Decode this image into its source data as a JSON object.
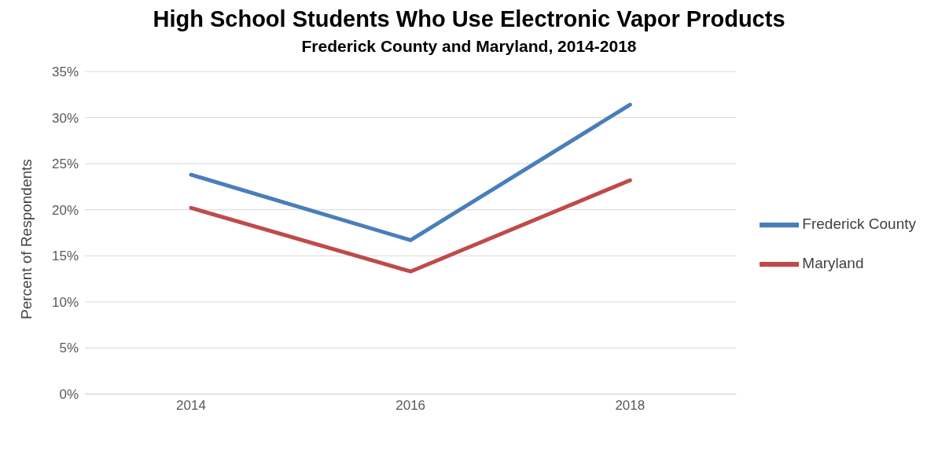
{
  "chart_data": {
    "type": "line",
    "title": "High School Students Who Use Electronic Vapor Products",
    "subtitle": "Frederick County and Maryland, 2014-2018",
    "ylabel": "Percent of Respondents",
    "categories": [
      "2014",
      "2016",
      "2018"
    ],
    "series": [
      {
        "name": "Frederick County",
        "color": "#4a7ebb",
        "values": [
          23.8,
          16.7,
          31.4
        ]
      },
      {
        "name": "Maryland",
        "color": "#be4b48",
        "values": [
          20.2,
          13.3,
          23.2
        ]
      }
    ],
    "ylim": [
      0,
      35
    ],
    "yticks": [
      {
        "value": 0,
        "label": "0%"
      },
      {
        "value": 5,
        "label": "5%"
      },
      {
        "value": 10,
        "label": "10%"
      },
      {
        "value": 15,
        "label": "15%"
      },
      {
        "value": 20,
        "label": "20%"
      },
      {
        "value": 25,
        "label": "25%"
      },
      {
        "value": 30,
        "label": "30%"
      },
      {
        "value": 35,
        "label": "35%"
      }
    ],
    "grid": "y",
    "legend": "right",
    "marker": "none",
    "line_style": "solid"
  }
}
